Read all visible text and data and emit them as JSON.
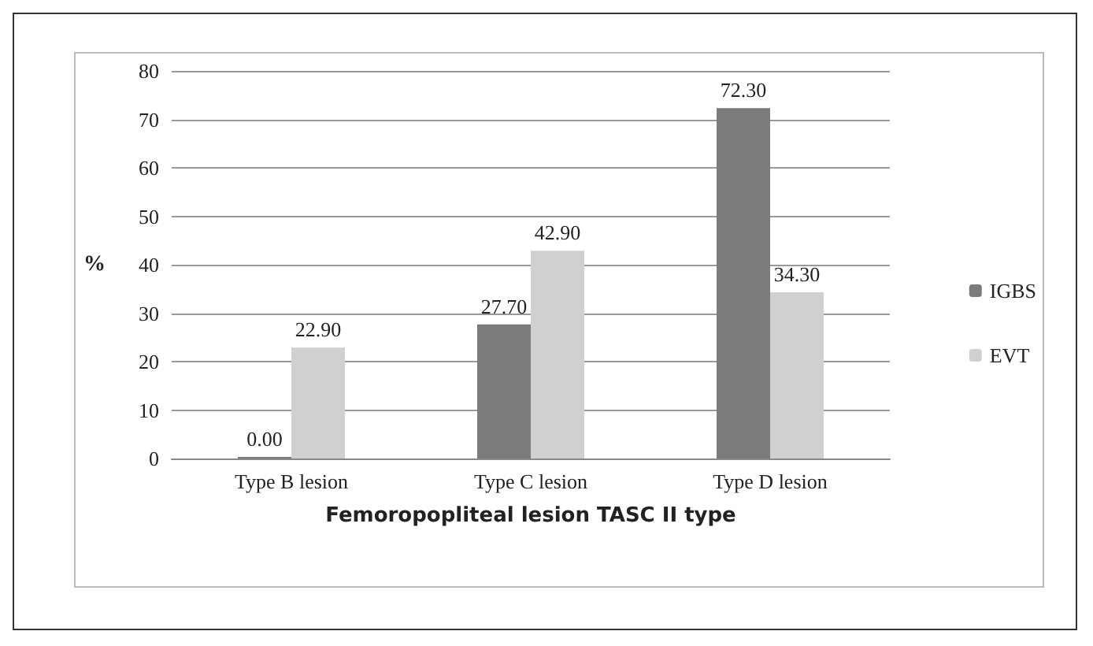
{
  "chart_data": {
    "type": "bar",
    "xlabel": "Femoropopliteal lesion TASC II type",
    "ylabel": "%",
    "categories": [
      "Type B lesion",
      "Type C lesion",
      "Type D lesion"
    ],
    "series": [
      {
        "name": "IGBS",
        "color": "#7b7b7b",
        "values": [
          0,
          27.7,
          72.3
        ],
        "value_labels": [
          "0.00",
          "27.70",
          "72.30"
        ]
      },
      {
        "name": "EVT",
        "color": "#d0d0d0",
        "values": [
          22.9,
          42.9,
          34.3
        ],
        "value_labels": [
          "22.90",
          "42.90",
          "34.30"
        ]
      }
    ],
    "ylim": [
      0,
      80
    ],
    "yticks": [
      0,
      10,
      20,
      30,
      40,
      50,
      60,
      70,
      80
    ],
    "grid": "y",
    "legend": "right"
  }
}
